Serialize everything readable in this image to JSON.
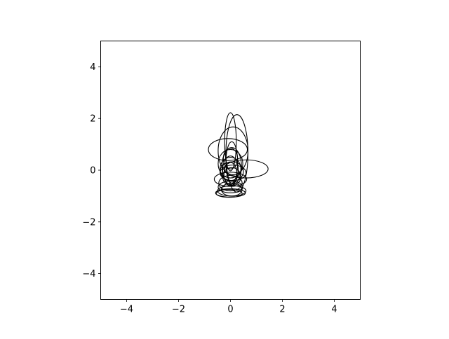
{
  "chart_data": {
    "type": "ellipse_plot",
    "title": "",
    "xlabel": "",
    "ylabel": "",
    "xlim": [
      -5,
      5
    ],
    "ylim": [
      -5,
      5
    ],
    "grid": false,
    "legend": "none",
    "xticks": [
      -4,
      -2,
      0,
      2,
      4
    ],
    "yticks": [
      -4,
      -2,
      0,
      2,
      4
    ],
    "xtick_labels": [
      "−4",
      "−2",
      "0",
      "2",
      "4"
    ],
    "ytick_labels": [
      "−4",
      "−2",
      "0",
      "2",
      "4"
    ],
    "line_color": "#000000",
    "ellipses": [
      {
        "cx": 0.0,
        "cy": 1.1,
        "w": 0.45,
        "h": 2.25
      },
      {
        "cx": 0.25,
        "cy": 0.65,
        "w": 0.85,
        "h": 3.0
      },
      {
        "cx": 0.1,
        "cy": 0.75,
        "w": 1.15,
        "h": 1.85
      },
      {
        "cx": -0.1,
        "cy": 0.8,
        "w": 1.5,
        "h": 0.85
      },
      {
        "cx": 0.6,
        "cy": 0.05,
        "w": 1.7,
        "h": 0.7
      },
      {
        "cx": 0.0,
        "cy": 0.25,
        "w": 0.95,
        "h": 1.1
      },
      {
        "cx": 0.05,
        "cy": 0.15,
        "w": 0.75,
        "h": 1.45
      },
      {
        "cx": 0.0,
        "cy": 0.05,
        "w": 0.8,
        "h": 0.9
      },
      {
        "cx": 0.05,
        "cy": -0.05,
        "w": 0.9,
        "h": 0.75
      },
      {
        "cx": 0.0,
        "cy": 0.0,
        "w": 0.6,
        "h": 1.1
      },
      {
        "cx": 0.1,
        "cy": -0.1,
        "w": 1.0,
        "h": 0.6
      },
      {
        "cx": 0.0,
        "cy": -0.35,
        "w": 1.25,
        "h": 0.55
      },
      {
        "cx": 0.05,
        "cy": -0.25,
        "w": 0.7,
        "h": 0.7
      },
      {
        "cx": 0.0,
        "cy": -0.5,
        "w": 0.9,
        "h": 0.6
      },
      {
        "cx": 0.0,
        "cy": -0.65,
        "w": 0.95,
        "h": 0.45
      },
      {
        "cx": 0.05,
        "cy": -0.8,
        "w": 1.1,
        "h": 0.4
      },
      {
        "cx": 0.0,
        "cy": -0.88,
        "w": 1.15,
        "h": 0.32
      },
      {
        "cx": 0.05,
        "cy": -0.75,
        "w": 0.8,
        "h": 0.5
      },
      {
        "cx": -0.05,
        "cy": -0.9,
        "w": 1.0,
        "h": 0.3
      },
      {
        "cx": 0.0,
        "cy": 0.45,
        "w": 0.55,
        "h": 0.8
      },
      {
        "cx": 0.05,
        "cy": 0.3,
        "w": 0.45,
        "h": 1.6
      },
      {
        "cx": 0.0,
        "cy": -0.15,
        "w": 0.5,
        "h": 0.9
      }
    ]
  }
}
